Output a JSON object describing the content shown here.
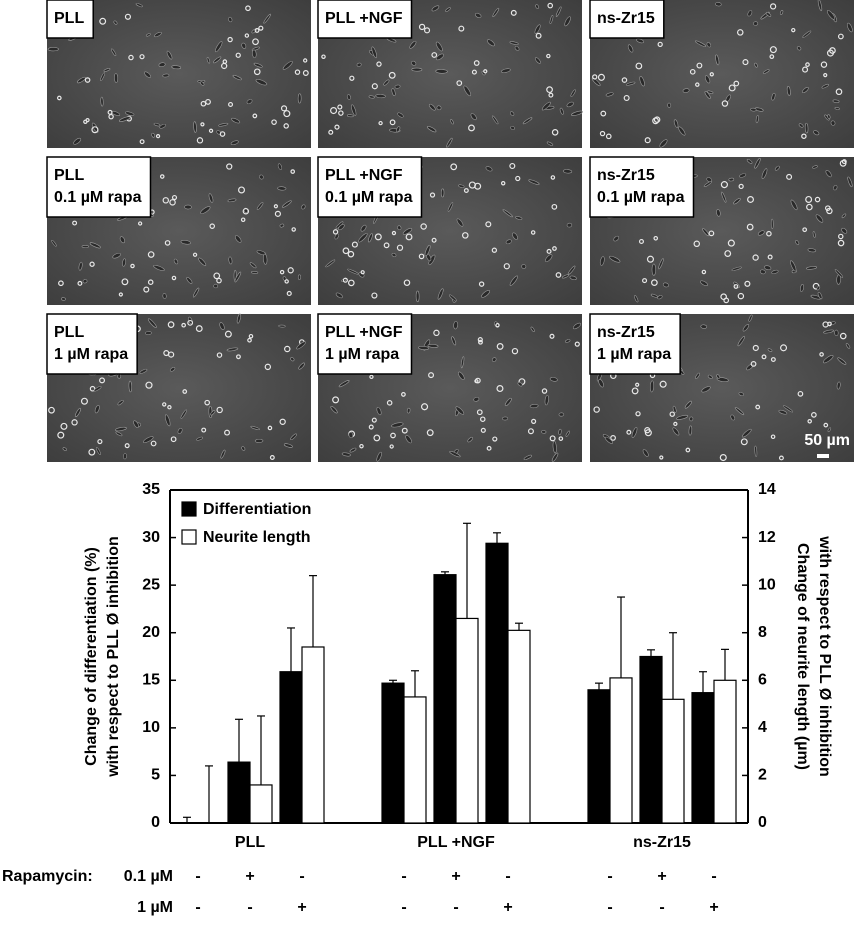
{
  "panels": [
    {
      "label": [
        "PLL"
      ]
    },
    {
      "label": [
        "PLL +NGF"
      ]
    },
    {
      "label": [
        "ns-Zr15"
      ]
    },
    {
      "label": [
        "PLL",
        "0.1 µM rapa"
      ]
    },
    {
      "label": [
        "PLL +NGF",
        "0.1 µM rapa"
      ]
    },
    {
      "label": [
        "ns-Zr15",
        "0.1 µM rapa"
      ]
    },
    {
      "label": [
        "PLL",
        "1 µM rapa"
      ]
    },
    {
      "label": [
        "PLL +NGF",
        "1 µM rapa"
      ]
    },
    {
      "label": [
        "ns-Zr15",
        "1 µM rapa"
      ]
    }
  ],
  "scale_bar": "50 µm",
  "chart_data": {
    "type": "grouped-bar",
    "groups": [
      "PLL",
      "PLL +NGF",
      "ns-Zr15"
    ],
    "ylabel": [
      "Change of differentiation (%)",
      "with respect to PLL Ø inhibition"
    ],
    "y2label": [
      "Change of neurite length (µm)",
      "with respect to PLL Ø inhibition"
    ],
    "ylim": [
      0,
      35
    ],
    "yticks": [
      0,
      5,
      10,
      15,
      20,
      25,
      30,
      35
    ],
    "y2lim": [
      0,
      14
    ],
    "y2ticks": [
      0,
      2,
      4,
      6,
      8,
      10,
      12,
      14
    ],
    "series": [
      {
        "name": "Differentiation",
        "color": "#000000",
        "values": [
          0,
          6.4,
          15.9,
          14.7,
          26.1,
          29.4,
          14.0,
          17.5,
          13.7
        ],
        "errors": [
          0.6,
          4.5,
          4.6,
          0.3,
          0.3,
          1.1,
          0.7,
          0.7,
          2.2
        ]
      },
      {
        "name": "Neurite length",
        "color": "#ffffff",
        "axis": "y2",
        "values": [
          0,
          1.6,
          7.4,
          5.3,
          8.6,
          8.1,
          6.1,
          5.2,
          6.0
        ],
        "errors": [
          2.4,
          2.9,
          3.0,
          1.1,
          4.0,
          0.3,
          3.4,
          2.8,
          1.3
        ]
      }
    ],
    "treatment_title": "Rapamycin:",
    "treatment_rows": [
      {
        "label": "0.1 µM",
        "marks": [
          "-",
          "+",
          "-",
          "-",
          "+",
          "-",
          "-",
          "+",
          "-"
        ]
      },
      {
        "label": "1 µM",
        "marks": [
          "-",
          "-",
          "+",
          "-",
          "-",
          "+",
          "-",
          "-",
          "+"
        ]
      }
    ],
    "legend": "upper left"
  }
}
